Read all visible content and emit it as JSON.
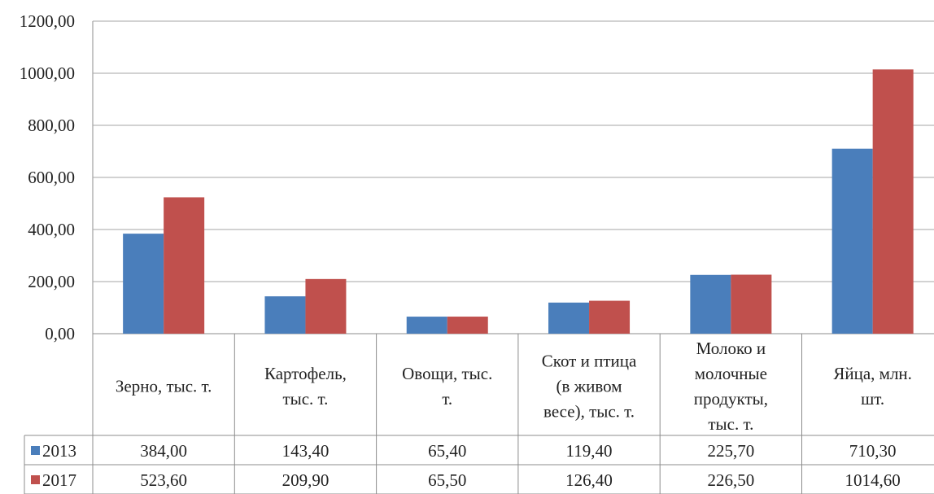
{
  "chart_data": {
    "type": "bar",
    "ylim": [
      0,
      1200
    ],
    "yticks": [
      "0,00",
      "200,00",
      "400,00",
      "600,00",
      "800,00",
      "1000,00",
      "1200,00"
    ],
    "grid": true,
    "legend": "data-table-left",
    "categories": [
      [
        "Зерно, тыс. т."
      ],
      [
        "Картофель,",
        "тыс. т."
      ],
      [
        "Овощи, тыс.",
        "т."
      ],
      [
        "Скот и птица",
        "(в живом",
        "весе), тыс. т."
      ],
      [
        "Молоко и",
        "молочные",
        "продукты,",
        "тыс. т."
      ],
      [
        "Яйца, млн.",
        "шт."
      ]
    ],
    "series": [
      {
        "name": "2013",
        "color": "#4a7ebb",
        "values": [
          384.0,
          143.4,
          65.4,
          119.4,
          225.7,
          710.3
        ],
        "labels": [
          "384,00",
          "143,40",
          "65,40",
          "119,40",
          "225,70",
          "710,30"
        ]
      },
      {
        "name": "2017",
        "color": "#c0504d",
        "values": [
          523.6,
          209.9,
          65.5,
          126.4,
          226.5,
          1014.6
        ],
        "labels": [
          "523,60",
          "209,90",
          "65,50",
          "126,40",
          "226,50",
          "1014,60"
        ]
      }
    ]
  }
}
